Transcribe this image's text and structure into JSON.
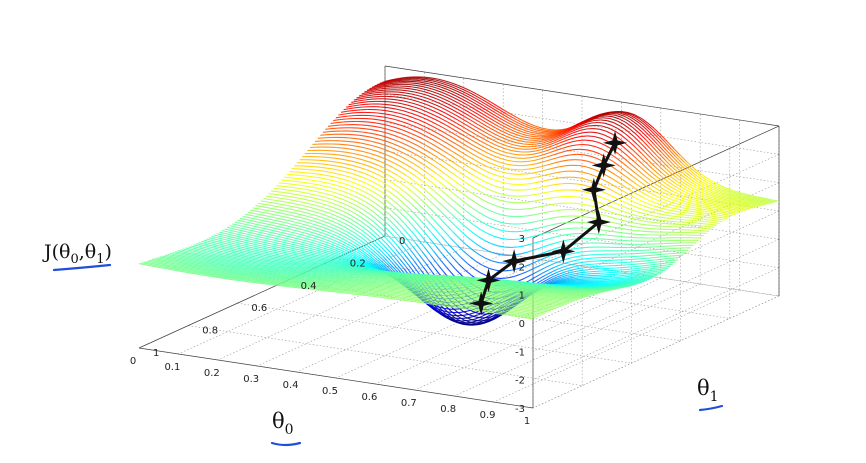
{
  "chart_data": {
    "type": "surface",
    "zlabel_base": "J(θ",
    "zlabel_sub0": "0",
    "zlabel_comma": ",θ",
    "zlabel_sub1": "1",
    "zlabel_close": ")",
    "xlabel_base": "θ",
    "xlabel_sub": "0",
    "ylabel_base": "θ",
    "ylabel_sub": "1",
    "theta0_ticks": [
      "1",
      "0.9",
      "0.8",
      "0.7",
      "0.6",
      "0.5",
      "0.4",
      "0.3",
      "0.2",
      "0.1",
      "0"
    ],
    "theta1_ticks": [
      "0",
      "0.2",
      "0.4",
      "0.6",
      "0.8",
      "1"
    ],
    "z_ticks": [
      "3",
      "2",
      "1",
      "0",
      "-1",
      "-2",
      "-3"
    ],
    "theta0_range": [
      0,
      1
    ],
    "theta1_range": [
      0,
      1
    ],
    "zlim": [
      -3,
      3
    ],
    "grid": true,
    "colormap": "jet",
    "descent_path": [
      {
        "theta0": 0.64,
        "theta1": 0.09,
        "z": 2.0
      },
      {
        "theta0": 0.63,
        "theta1": 0.12,
        "z": 1.3
      },
      {
        "theta0": 0.63,
        "theta1": 0.16,
        "z": 0.6
      },
      {
        "theta0": 0.68,
        "theta1": 0.22,
        "z": -0.2
      },
      {
        "theta0": 0.64,
        "theta1": 0.3,
        "z": -1.0
      },
      {
        "theta0": 0.54,
        "theta1": 0.34,
        "z": -1.4
      },
      {
        "theta0": 0.5,
        "theta1": 0.38,
        "z": -2.0
      },
      {
        "theta0": 0.5,
        "theta1": 0.41,
        "z": -2.7
      }
    ]
  }
}
